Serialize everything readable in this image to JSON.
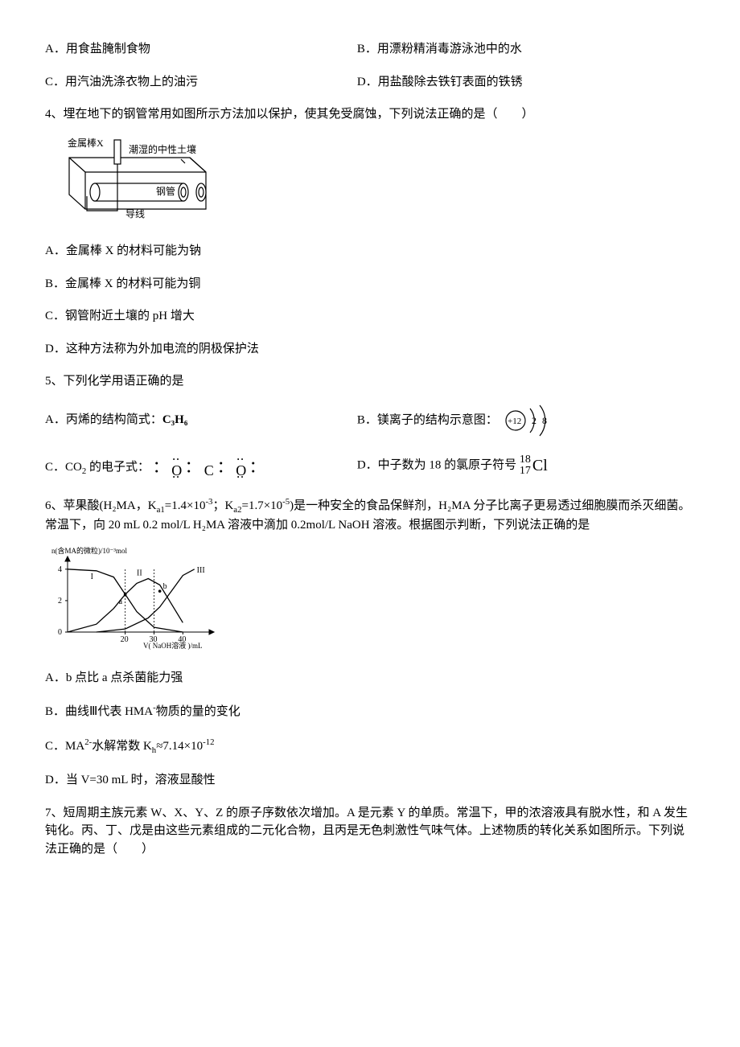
{
  "q3": {
    "optA_label": "A．",
    "optA_text": "用食盐腌制食物",
    "optB_label": "B．",
    "optB_text": "用漂粉精消毒游泳池中的水",
    "optC_label": "C．",
    "optC_text": "用汽油洗涤衣物上的油污",
    "optD_label": "D．",
    "optD_text": "用盐酸除去铁钉表面的铁锈"
  },
  "q4": {
    "stem": "4、埋在地下的钢管常用如图所示方法加以保护，使其免受腐蚀，下列说法正确的是（　　）",
    "diagram": {
      "label_metalX": "金属棒X",
      "label_soil": "潮湿的中性土壤",
      "label_pipe": "钢管",
      "label_wire": "导线",
      "stroke": "#000000",
      "fill": "#ffffff"
    },
    "optA": "A．金属棒 X 的材料可能为钠",
    "optB": "B．金属棒 X 的材料可能为铜",
    "optC": "C．钢管附近土壤的 pH 增大",
    "optD": "D．这种方法称为外加电流的阴极保护法"
  },
  "q5": {
    "stem": "5、下列化学用语正确的是",
    "optA_pre": "A．丙烯的结构简式：",
    "optA_formula": "C₃H₆",
    "optB_pre": "B．镁离子的结构示意图：",
    "mg_diagram": {
      "nucleus": "+12",
      "shell1": "2",
      "shell2": "8",
      "stroke": "#000000"
    },
    "optC_pre": "C．CO",
    "optC_sub": "2",
    "optC_mid": " 的电子式：",
    "edot_O": "O",
    "edot_C": "C",
    "optD_pre": "D．中子数为 18 的氯原子符号",
    "cl_top": "18",
    "cl_bot": "17",
    "cl_sym": "Cl"
  },
  "q6": {
    "stem_pre": "6、苹果酸(",
    "stem_h2ma": "H₂MA",
    "stem_k1_pre": "，K",
    "stem_k1_sub": "a1",
    "stem_k1_eq": "=1.4×10",
    "stem_k1_exp": "-3",
    "stem_k2_pre": "；K",
    "stem_k2_sub": "a2",
    "stem_k2_eq": "=1.7×10",
    "stem_k2_exp": "-5",
    "stem_mid": ")是一种安全的食品保鲜剂，H₂MA 分子比离子更易透过细胞膜而杀灭细菌。常温下，向 20 mL 0.2 mol/L H₂MA 溶液中滴加 0.2mol/L NaOH 溶液。根据图示判断，下列说法正确的是",
    "graph": {
      "ylabel": "n(含MA的微粒)/10⁻³mol",
      "xlabel": "V( NaOH溶液 )/mL",
      "xticks": [
        20,
        30,
        40
      ],
      "yticks": [
        0,
        2,
        4
      ],
      "stroke_axis": "#000000",
      "stroke_curve": "#000000",
      "stroke_dash": "#000000",
      "label_I": "I",
      "label_II": "II",
      "label_III": "III",
      "label_a": "a",
      "label_b": "b",
      "series": {
        "I": [
          [
            0,
            4.0
          ],
          [
            10,
            3.9
          ],
          [
            16,
            3.5
          ],
          [
            20,
            2.4
          ],
          [
            24,
            1.3
          ],
          [
            30,
            0.3
          ],
          [
            40,
            0.0
          ]
        ],
        "II": [
          [
            0,
            0.0
          ],
          [
            10,
            0.5
          ],
          [
            16,
            1.5
          ],
          [
            20,
            2.4
          ],
          [
            24,
            3.1
          ],
          [
            28,
            3.4
          ],
          [
            32,
            3.0
          ],
          [
            36,
            1.8
          ],
          [
            40,
            0.6
          ]
        ],
        "III": [
          [
            10,
            0.0
          ],
          [
            20,
            0.2
          ],
          [
            28,
            0.9
          ],
          [
            32,
            1.6
          ],
          [
            36,
            2.6
          ],
          [
            40,
            3.6
          ],
          [
            44,
            4.0
          ]
        ]
      },
      "pt_a": [
        20,
        2.4
      ],
      "pt_b": [
        32,
        2.6
      ]
    },
    "optA": "A．b 点比 a 点杀菌能力强",
    "optB_pre": "B．曲线Ⅲ代表 HMA",
    "optB_sup": "-",
    "optB_post": "物质的量的变化",
    "optC_pre": "C．MA",
    "optC_sup2": "2-",
    "optC_mid": "水解常数 K",
    "optC_sub": "h",
    "optC_eq": "≈7.14×10",
    "optC_exp": "-12",
    "optD": "D．当 V=30 mL 时，溶液显酸性"
  },
  "q7": {
    "stem": "7、短周期主族元素 W、X、Y、Z 的原子序数依次增加。A 是元素 Y 的单质。常温下，甲的浓溶液具有脱水性，和 A 发生钝化。丙、丁、戊是由这些元素组成的二元化合物，且丙是无色刺激性气味气体。上述物质的转化关系如图所示。下列说法正确的是（　　）"
  }
}
